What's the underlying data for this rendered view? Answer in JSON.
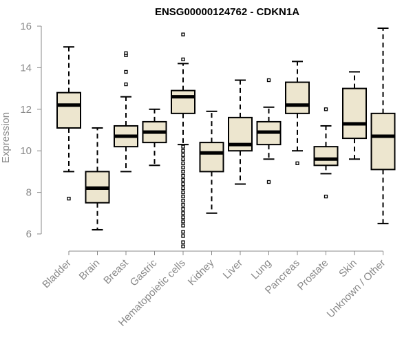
{
  "chart_data": {
    "type": "box",
    "title": "ENSG00000124762 - CDKN1A",
    "xlabel": "",
    "ylabel": "Expression",
    "ylim": [
      5.0,
      16.2
    ],
    "yticks": [
      6,
      8,
      10,
      12,
      14,
      16
    ],
    "colors": {
      "box_fill": "#ede6cf",
      "box_stroke": "#000000",
      "axis": "#888888"
    },
    "categories": [
      "Bladder",
      "Brain",
      "Breast",
      "Gastric",
      "Hematopoietic cells",
      "Kidney",
      "Liver",
      "Lung",
      "Pancreas",
      "Prostate",
      "Skin",
      "Unknown / Other"
    ],
    "boxes": [
      {
        "category": "Bladder",
        "whisker_low": 9.0,
        "q1": 11.1,
        "median": 12.2,
        "q3": 12.8,
        "whisker_high": 15.0,
        "outliers": [
          7.7
        ]
      },
      {
        "category": "Brain",
        "whisker_low": 6.2,
        "q1": 7.5,
        "median": 8.2,
        "q3": 9.0,
        "whisker_high": 11.1,
        "outliers": []
      },
      {
        "category": "Breast",
        "whisker_low": 9.0,
        "q1": 10.2,
        "median": 10.7,
        "q3": 11.2,
        "whisker_high": 12.6,
        "outliers": [
          13.2,
          13.8,
          14.6,
          14.7
        ]
      },
      {
        "category": "Gastric",
        "whisker_low": 9.3,
        "q1": 10.4,
        "median": 10.9,
        "q3": 11.4,
        "whisker_high": 12.0,
        "outliers": []
      },
      {
        "category": "Hematopoietic cells",
        "whisker_low": 10.3,
        "q1": 11.8,
        "median": 12.6,
        "q3": 12.9,
        "whisker_high": 14.2,
        "outliers": [
          15.6,
          14.4,
          5.4,
          5.6,
          5.9,
          6.1,
          6.4,
          6.6,
          6.8,
          7.0,
          7.2,
          7.4,
          7.6,
          7.8,
          8.0,
          8.2,
          8.4,
          8.6,
          8.8,
          9.0,
          9.2,
          9.4,
          9.6,
          9.8,
          10.0,
          10.2
        ]
      },
      {
        "category": "Kidney",
        "whisker_low": 7.0,
        "q1": 9.0,
        "median": 9.9,
        "q3": 10.4,
        "whisker_high": 11.9,
        "outliers": []
      },
      {
        "category": "Liver",
        "whisker_low": 8.4,
        "q1": 10.0,
        "median": 10.3,
        "q3": 11.6,
        "whisker_high": 13.4,
        "outliers": []
      },
      {
        "category": "Lung",
        "whisker_low": 9.6,
        "q1": 10.3,
        "median": 10.9,
        "q3": 11.4,
        "whisker_high": 12.1,
        "outliers": [
          8.5,
          13.4
        ]
      },
      {
        "category": "Pancreas",
        "whisker_low": 10.0,
        "q1": 11.8,
        "median": 12.2,
        "q3": 13.3,
        "whisker_high": 14.3,
        "outliers": [
          9.4
        ]
      },
      {
        "category": "Prostate",
        "whisker_low": 8.9,
        "q1": 9.3,
        "median": 9.6,
        "q3": 10.2,
        "whisker_high": 11.2,
        "outliers": [
          7.8,
          12.0
        ]
      },
      {
        "category": "Skin",
        "whisker_low": 9.6,
        "q1": 10.6,
        "median": 11.3,
        "q3": 13.0,
        "whisker_high": 13.8,
        "outliers": []
      },
      {
        "category": "Unknown / Other",
        "whisker_low": 6.5,
        "q1": 9.1,
        "median": 10.7,
        "q3": 11.8,
        "whisker_high": 15.9,
        "outliers": []
      }
    ]
  }
}
